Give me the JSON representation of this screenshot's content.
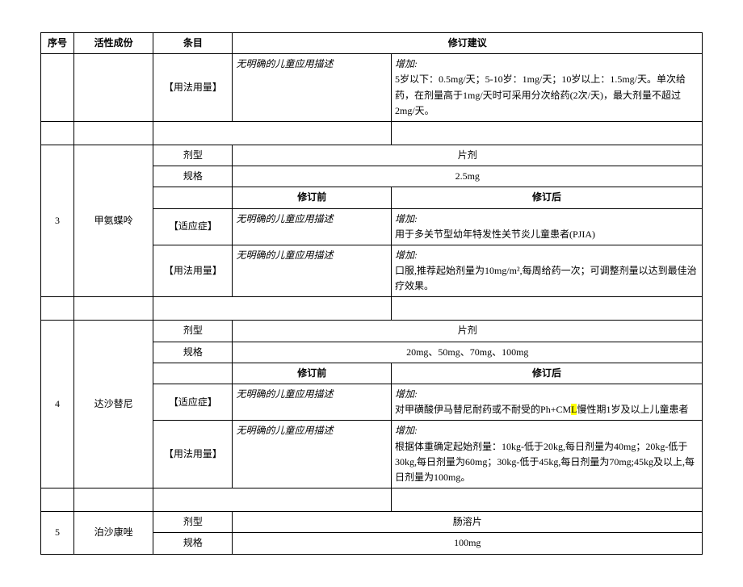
{
  "headers": {
    "seq": "序号",
    "ingredient": "活性成份",
    "item": "条目",
    "suggestion": "修订建议",
    "before": "修订前",
    "after": "修订后"
  },
  "labels": {
    "usage": "【用法用量】",
    "indication": "【适应症】",
    "form": "剂型",
    "spec": "规格"
  },
  "common": {
    "no_child_desc": "无明确的儿童应用描述",
    "add": "增加:"
  },
  "row1": {
    "usage_after": "5岁以下：0.5mg/天；5-10岁：1mg/天；10岁以上：1.5mg/天。单次给药，在剂量高于1mg/天时可采用分次给药(2次/天)，最大剂量不超过2mg/天。"
  },
  "row3": {
    "seq": "3",
    "name": "甲氨蝶呤",
    "form_val": "片剂",
    "spec_val": "2.5mg",
    "indication_after": "用于多关节型幼年特发性关节炎儿童患者(PJIA)",
    "usage_after": "口服,推荐起始剂量为10mg/m²,每周给药一次；可调整剂量以达到最佳治疗效果。"
  },
  "row4": {
    "seq": "4",
    "name": "达沙替尼",
    "form_val": "片剂",
    "spec_val": "20mg、50mg、70mg、100mg",
    "indication_after_1": "对甲磺酸伊马替尼耐药或不耐受的Ph+CM",
    "indication_after_hl": "L",
    "indication_after_2": "慢性期1岁及以上儿童患者",
    "usage_after": "根据体重确定起始剂量：10kg-低于20kg,每日剂量为40mg；20kg-低于30kg,每日剂量为60mg；30kg-低于45kg,每日剂量为70mg;45kg及以上,每日剂量为100mg。"
  },
  "row5": {
    "seq": "5",
    "name": "泊沙康唑",
    "form_val": "肠溶片",
    "spec_val": "100mg"
  }
}
